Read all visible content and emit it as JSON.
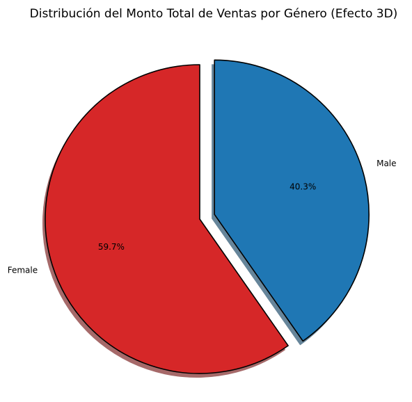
{
  "chart_data": {
    "type": "pie",
    "title": "Distribución del Monto Total de Ventas por Género (Efecto 3D)",
    "start_angle_deg": 90,
    "direction": "counterclockwise",
    "shadow": true,
    "slices": [
      {
        "label": "Female",
        "value": 59.7,
        "pct_label": "59.7%",
        "color": "#d62728",
        "explode": 0
      },
      {
        "label": "Male",
        "value": 40.3,
        "pct_label": "40.3%",
        "color": "#1f77b4",
        "explode": 0.1
      }
    ]
  }
}
